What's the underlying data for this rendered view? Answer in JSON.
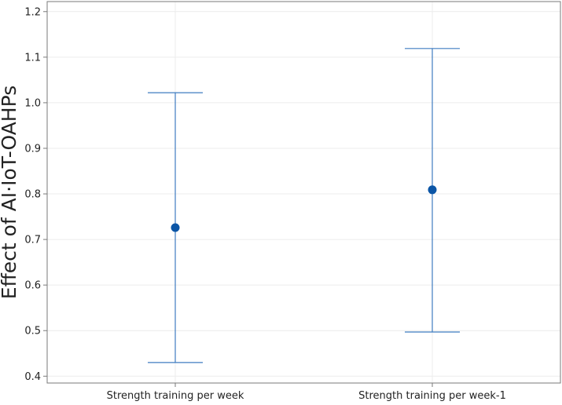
{
  "chart_data": {
    "type": "interval",
    "title": "",
    "xlabel": "",
    "ylabel": "Effect of AI·IoT-OAHPs",
    "categories": [
      "Strength training per week",
      "Strength training per week-1"
    ],
    "series": [
      {
        "point": [
          0.726,
          0.809
        ],
        "lower": [
          0.43,
          0.497
        ],
        "upper": [
          1.022,
          1.119
        ]
      }
    ],
    "ylim": [
      0.385,
      1.222
    ],
    "yticks": [
      0.4,
      0.5,
      0.6,
      0.7,
      0.8,
      0.9,
      1.0,
      1.1,
      1.2
    ],
    "ytick_labels": [
      "0.4",
      "0.5",
      "0.6",
      "0.7",
      "0.8",
      "0.9",
      "1.0",
      "1.1",
      "1.2"
    ],
    "grid": true,
    "colors": {
      "interval": "#3f7cc0",
      "point": "#0b55a6",
      "grid": "#ececec",
      "frame": "#7a7a7a"
    }
  }
}
